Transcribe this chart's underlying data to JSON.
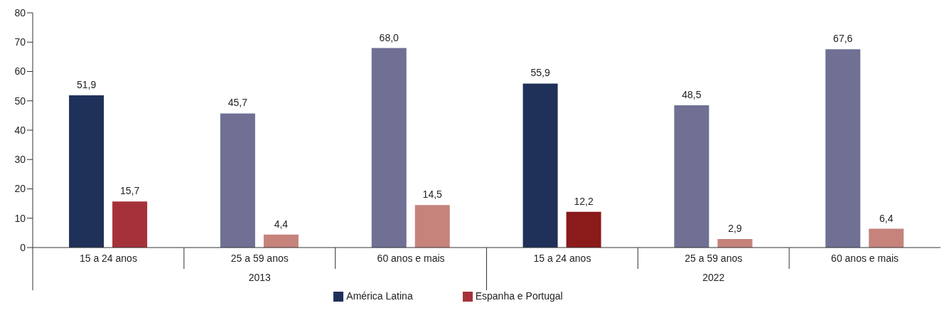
{
  "chart_data": {
    "type": "bar",
    "categories": [
      "15 a 24 anos",
      "25 a 59 anos",
      "60 anos e mais",
      "15 a 24 anos",
      "25 a 59 anos",
      "60 anos e mais"
    ],
    "series": [
      {
        "name": "América Latina",
        "color": "#1f3059",
        "colors": [
          "#1f3059",
          "#6f7093",
          "#6f7093",
          "#1f3059",
          "#6f7093",
          "#6f7093"
        ],
        "values": [
          51.9,
          45.7,
          68.0,
          55.9,
          48.5,
          67.6
        ],
        "value_labels": [
          "51,9",
          "45,7",
          "68,0",
          "55,9",
          "48,5",
          "67,6"
        ]
      },
      {
        "name": "Espanha e Portugal",
        "color": "#a5323b",
        "colors": [
          "#a5323b",
          "#c5837c",
          "#c5837c",
          "#8b1a1a",
          "#c5837c",
          "#c5837c"
        ],
        "values": [
          15.7,
          4.4,
          14.5,
          12.2,
          2.9,
          6.4
        ],
        "value_labels": [
          "15,7",
          "4,4",
          "14,5",
          "12,2",
          "2,9",
          "6,4"
        ]
      }
    ],
    "annotations": [
      "2013",
      "2022"
    ],
    "ylim": [
      0,
      80
    ],
    "yticks": [
      0,
      10,
      20,
      30,
      40,
      50,
      60,
      70,
      80
    ],
    "legend": "bottom"
  }
}
